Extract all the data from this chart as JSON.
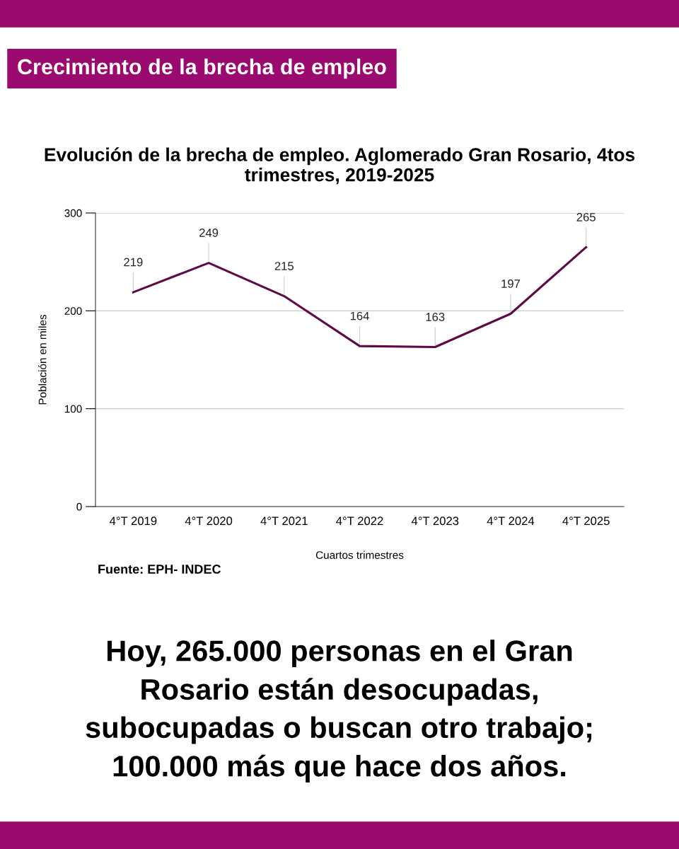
{
  "chart_data": {
    "type": "line",
    "title": "Evolución de la brecha de empleo. Aglomerado Gran Rosario, 4tos trimestres, 2019-2025",
    "xlabel": "Cuartos trimestres",
    "ylabel": "Población en miles",
    "categories": [
      "4°T 2019",
      "4°T 2020",
      "4°T 2021",
      "4°T 2022",
      "4°T 2023",
      "4°T 2024",
      "4°T 2025"
    ],
    "series": [
      {
        "color": "#5e0a45",
        "values": [
          219,
          249,
          215,
          164,
          163,
          197,
          265
        ]
      }
    ],
    "ylim": [
      0,
      300
    ],
    "yticks": [
      0,
      100,
      200,
      300
    ],
    "grid": "y",
    "data_labels": true,
    "marker": "none",
    "line_style": "solid",
    "annotations": [
      "Crecimiento de la brecha de empleo",
      "Fuente: EPH- INDEC",
      "Hoy, 265.000 personas en el Gran Rosario están desocupadas, subocupadas o buscan otro trabajo; 100.000 más que hace dos años."
    ]
  }
}
